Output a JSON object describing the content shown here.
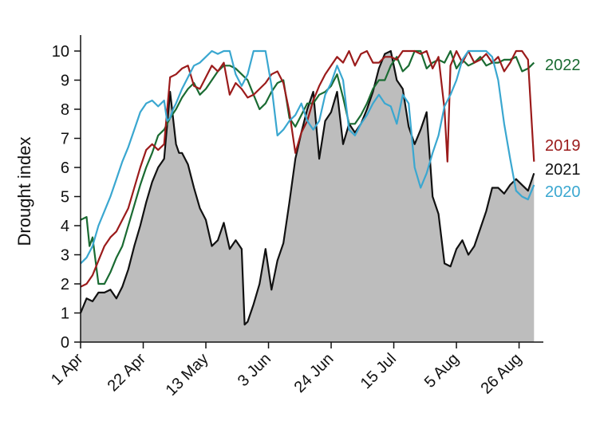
{
  "chart_data": {
    "type": "line",
    "title": "",
    "ylabel": "Drought index",
    "xlabel": "",
    "x_unit": "days since 1 Apr",
    "xlim": [
      0,
      153
    ],
    "ylim": [
      0,
      10
    ],
    "yticks": [
      0,
      1,
      2,
      3,
      4,
      5,
      6,
      7,
      8,
      9,
      10
    ],
    "xticks": [
      {
        "x": 0,
        "label": "1 Apr"
      },
      {
        "x": 21,
        "label": "22 Apr"
      },
      {
        "x": 42,
        "label": "13 May"
      },
      {
        "x": 63,
        "label": "3 Jun"
      },
      {
        "x": 84,
        "label": "24 Jun"
      },
      {
        "x": 105,
        "label": "15 Jul"
      },
      {
        "x": 126,
        "label": "5 Aug"
      },
      {
        "x": 147,
        "label": "26 Aug"
      }
    ],
    "grid": false,
    "legend": "labels at line ends (right)",
    "series": [
      {
        "name": "2021",
        "color": "#111111",
        "style": "filled-area",
        "fill": "#bdbdbd",
        "x": [
          0,
          2,
          4,
          6,
          8,
          10,
          12,
          14,
          16,
          18,
          20,
          22,
          24,
          26,
          28,
          30,
          32,
          33,
          34,
          36,
          38,
          40,
          42,
          44,
          46,
          48,
          50,
          52,
          54,
          55,
          56,
          58,
          60,
          62,
          64,
          66,
          68,
          70,
          72,
          74,
          76,
          78,
          80,
          82,
          84,
          86,
          88,
          90,
          92,
          94,
          96,
          98,
          100,
          102,
          104,
          106,
          108,
          110,
          112,
          114,
          116,
          118,
          120,
          122,
          124,
          126,
          128,
          130,
          132,
          134,
          136,
          138,
          140,
          142,
          144,
          146,
          148,
          150,
          152
        ],
        "y": [
          1.0,
          1.5,
          1.4,
          1.7,
          1.7,
          1.8,
          1.5,
          1.9,
          2.5,
          3.3,
          4.0,
          4.8,
          5.5,
          6.0,
          6.3,
          8.6,
          6.8,
          6.5,
          6.5,
          6.1,
          5.3,
          4.6,
          4.2,
          3.3,
          3.5,
          4.1,
          3.2,
          3.5,
          3.2,
          0.6,
          0.7,
          1.3,
          2.0,
          3.2,
          1.8,
          2.8,
          3.4,
          4.8,
          6.3,
          7.2,
          8.0,
          8.6,
          6.3,
          7.6,
          7.9,
          8.6,
          6.8,
          7.5,
          7.2,
          7.5,
          8.0,
          8.6,
          9.4,
          9.9,
          10.0,
          9.0,
          8.7,
          7.4,
          6.8,
          7.3,
          7.9,
          5.0,
          4.4,
          2.7,
          2.6,
          3.2,
          3.5,
          3.0,
          3.3,
          3.9,
          4.5,
          5.3,
          5.3,
          5.1,
          5.4,
          5.6,
          5.4,
          5.2,
          5.8
        ]
      },
      {
        "name": "2022",
        "color": "#1a6b32",
        "style": "line",
        "x": [
          0,
          2,
          3,
          4,
          6,
          8,
          10,
          12,
          14,
          16,
          18,
          20,
          22,
          24,
          26,
          28,
          30,
          32,
          34,
          36,
          38,
          40,
          42,
          44,
          46,
          48,
          50,
          52,
          54,
          56,
          58,
          60,
          62,
          64,
          66,
          68,
          70,
          72,
          74,
          76,
          78,
          80,
          82,
          84,
          86,
          88,
          90,
          92,
          94,
          96,
          98,
          100,
          102,
          104,
          106,
          108,
          110,
          112,
          114,
          116,
          118,
          120,
          122,
          124,
          126,
          128,
          130,
          132,
          134,
          136,
          138,
          140,
          142,
          144,
          146,
          148,
          150,
          152
        ],
        "y": [
          4.2,
          4.3,
          3.3,
          3.6,
          2.0,
          2.0,
          2.4,
          2.9,
          3.3,
          4.0,
          4.7,
          5.4,
          6.0,
          6.5,
          7.1,
          7.3,
          7.7,
          8.0,
          8.4,
          8.7,
          8.9,
          8.5,
          8.7,
          9.0,
          9.3,
          9.5,
          9.5,
          9.4,
          9.2,
          9.0,
          8.5,
          8.0,
          8.2,
          8.6,
          8.9,
          9.0,
          7.7,
          7.4,
          7.8,
          8.2,
          8.2,
          8.5,
          8.6,
          8.8,
          9.2,
          8.4,
          7.5,
          7.5,
          7.8,
          8.2,
          8.7,
          9.0,
          9.0,
          9.5,
          9.8,
          9.3,
          9.5,
          10.0,
          10.0,
          9.4,
          9.6,
          9.7,
          9.6,
          10.0,
          9.4,
          9.7,
          9.5,
          9.6,
          9.8,
          9.5,
          9.6,
          9.6,
          9.7,
          9.7,
          9.8,
          9.3,
          9.4,
          9.6
        ]
      },
      {
        "name": "2019",
        "color": "#9b1b1b",
        "style": "line",
        "x": [
          0,
          2,
          4,
          6,
          8,
          10,
          12,
          14,
          16,
          18,
          20,
          22,
          24,
          26,
          28,
          30,
          32,
          34,
          36,
          38,
          40,
          42,
          44,
          46,
          48,
          50,
          52,
          54,
          56,
          58,
          60,
          62,
          64,
          66,
          68,
          70,
          72,
          74,
          76,
          78,
          80,
          82,
          84,
          86,
          88,
          90,
          92,
          94,
          96,
          98,
          100,
          102,
          104,
          106,
          108,
          110,
          112,
          114,
          116,
          118,
          120,
          122,
          123,
          124,
          126,
          128,
          130,
          132,
          134,
          136,
          138,
          140,
          142,
          144,
          146,
          148,
          150,
          152
        ],
        "y": [
          1.9,
          2.0,
          2.3,
          2.8,
          3.3,
          3.6,
          3.8,
          4.2,
          4.6,
          5.3,
          6.0,
          6.6,
          6.8,
          6.6,
          6.8,
          9.1,
          9.2,
          9.4,
          9.5,
          8.8,
          8.7,
          9.1,
          9.5,
          9.3,
          9.6,
          8.5,
          8.9,
          8.7,
          8.4,
          8.5,
          8.7,
          8.9,
          9.2,
          9.3,
          8.9,
          7.9,
          6.5,
          7.2,
          7.6,
          8.3,
          8.8,
          9.2,
          9.5,
          9.8,
          9.6,
          10.0,
          9.5,
          9.9,
          10.0,
          9.6,
          9.6,
          9.8,
          9.8,
          9.7,
          10.0,
          10.0,
          10.0,
          9.9,
          10.0,
          9.4,
          9.8,
          8.0,
          6.2,
          9.5,
          10.0,
          9.6,
          10.0,
          9.6,
          9.7,
          9.9,
          9.6,
          9.8,
          9.3,
          9.6,
          10.0,
          10.0,
          9.7,
          6.2
        ]
      },
      {
        "name": "2020",
        "color": "#3aa7d0",
        "style": "line",
        "x": [
          0,
          2,
          4,
          6,
          8,
          10,
          12,
          14,
          16,
          18,
          20,
          22,
          24,
          26,
          28,
          29,
          30,
          31,
          32,
          34,
          36,
          38,
          40,
          42,
          44,
          46,
          48,
          50,
          52,
          54,
          56,
          58,
          60,
          62,
          64,
          66,
          68,
          70,
          72,
          74,
          76,
          78,
          80,
          82,
          84,
          86,
          88,
          90,
          92,
          94,
          96,
          98,
          100,
          102,
          104,
          106,
          108,
          110,
          112,
          114,
          116,
          118,
          120,
          122,
          124,
          126,
          128,
          130,
          132,
          134,
          136,
          138,
          140,
          142,
          144,
          146,
          148,
          150,
          152
        ],
        "y": [
          2.7,
          2.9,
          3.3,
          4.0,
          4.5,
          5.0,
          5.6,
          6.2,
          6.7,
          7.3,
          7.9,
          8.2,
          8.3,
          8.1,
          8.3,
          7.6,
          7.7,
          8.0,
          8.2,
          8.7,
          9.1,
          9.5,
          9.6,
          9.8,
          10.0,
          9.9,
          10.0,
          10.0,
          9.2,
          8.8,
          9.2,
          10.0,
          10.0,
          10.0,
          8.8,
          7.1,
          7.3,
          7.6,
          7.8,
          8.2,
          7.6,
          7.3,
          7.6,
          8.5,
          8.9,
          9.5,
          9.0,
          7.3,
          7.1,
          7.5,
          7.8,
          8.2,
          8.5,
          8.2,
          8.1,
          7.5,
          8.5,
          8.2,
          6.0,
          5.3,
          5.8,
          6.5,
          7.1,
          8.1,
          8.5,
          9.0,
          9.7,
          10.0,
          10.0,
          10.0,
          10.0,
          9.8,
          9.0,
          7.5,
          6.3,
          5.2,
          5.0,
          4.9,
          5.4
        ]
      }
    ]
  }
}
